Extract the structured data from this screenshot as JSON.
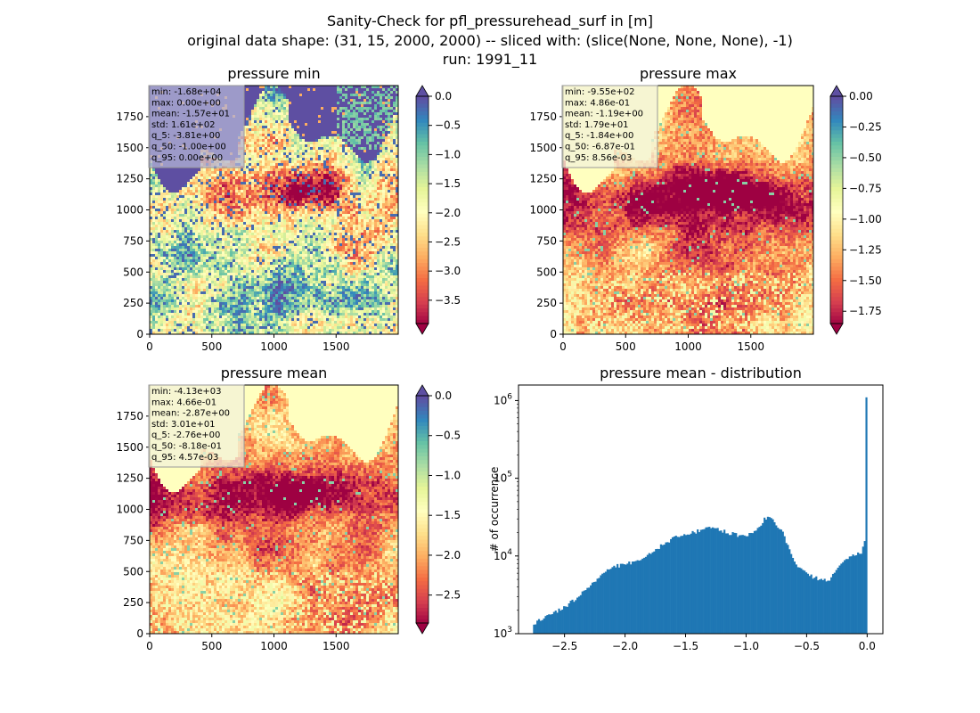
{
  "figure": {
    "title_lines": [
      "Sanity-Check for pfl_pressurehead_surf in [m]",
      "original data shape: (31, 15, 2000, 2000) -- sliced with: (slice(None, None, None), -1)",
      "run: 1991_11"
    ]
  },
  "chart_data": [
    {
      "type": "heatmap",
      "title": "pressure min",
      "colormap": "Spectral",
      "x_ticks": [
        "0",
        "500",
        "1000",
        "1500"
      ],
      "y_ticks": [
        "0",
        "250",
        "500",
        "750",
        "1000",
        "1250",
        "1500",
        "1750"
      ],
      "xlim": [
        0,
        2000
      ],
      "ylim": [
        0,
        2000
      ],
      "colorbar": {
        "range": [
          -3.9,
          0.0
        ],
        "ticks": [
          "0.0",
          "−0.5",
          "−1.0",
          "−1.5",
          "−2.0",
          "−2.5",
          "−3.0",
          "−3.5"
        ],
        "tick_values": [
          0.0,
          -0.5,
          -1.0,
          -1.5,
          -2.0,
          -2.5,
          -3.0,
          -3.5
        ],
        "extend": "both",
        "over_color": "#5e4fa2",
        "under_color": "#9e0142"
      },
      "stats": [
        "min: -1.68e+04",
        "max: 0.00e+00",
        "mean: -1.57e+01",
        "std: 1.61e+02",
        "q_5: -3.81e+00",
        "q_50: -1.00e+00",
        "q_95: 0.00e+00"
      ],
      "stats_box_color": "#b3b3d6"
    },
    {
      "type": "heatmap",
      "title": "pressure max",
      "colormap": "Spectral",
      "x_ticks": [
        "0",
        "500",
        "1000",
        "1500"
      ],
      "y_ticks": [
        "0",
        "250",
        "500",
        "750",
        "1000",
        "1250",
        "1500",
        "1750"
      ],
      "xlim": [
        0,
        2000
      ],
      "ylim": [
        0,
        2000
      ],
      "colorbar": {
        "range": [
          -1.85,
          0.0
        ],
        "ticks": [
          "0.00",
          "−0.25",
          "−0.50",
          "−0.75",
          "−1.00",
          "−1.25",
          "−1.50",
          "−1.75"
        ],
        "tick_values": [
          0.0,
          -0.25,
          -0.5,
          -0.75,
          -1.0,
          -1.25,
          -1.5,
          -1.75
        ],
        "extend": "both",
        "over_color": "#5e4fa2",
        "under_color": "#9e0142"
      },
      "stats": [
        "min: -9.55e+02",
        "max: 4.86e-01",
        "mean: -1.19e+00",
        "std: 1.79e+01",
        "q_5: -1.84e+00",
        "q_50: -6.87e-01",
        "q_95: 8.56e-03"
      ],
      "stats_box_color": "#f3f1d8"
    },
    {
      "type": "heatmap",
      "title": "pressure mean",
      "colormap": "Spectral",
      "x_ticks": [
        "0",
        "500",
        "1000",
        "1500"
      ],
      "y_ticks": [
        "0",
        "250",
        "500",
        "750",
        "1000",
        "1250",
        "1500",
        "1750"
      ],
      "xlim": [
        0,
        2000
      ],
      "ylim": [
        0,
        2000
      ],
      "colorbar": {
        "range": [
          -2.85,
          0.0
        ],
        "ticks": [
          "0.0",
          "−0.5",
          "−1.0",
          "−1.5",
          "−2.0",
          "−2.5"
        ],
        "tick_values": [
          0.0,
          -0.5,
          -1.0,
          -1.5,
          -2.0,
          -2.5
        ],
        "extend": "both",
        "over_color": "#5e4fa2",
        "under_color": "#9e0142"
      },
      "stats": [
        "min: -4.13e+03",
        "max: 4.66e-01",
        "mean: -2.87e+00",
        "std: 3.01e+01",
        "q_5: -2.76e+00",
        "q_50: -8.18e-01",
        "q_95: 4.57e-03"
      ],
      "stats_box_color": "#f3f1d8"
    },
    {
      "type": "bar",
      "title": "pressure mean - distribution",
      "xlabel": "",
      "ylabel": "# of occurrence",
      "color": "#1f77b4",
      "xlim": [
        -2.88,
        0.13
      ],
      "ylim_log10": [
        3.0,
        6.2
      ],
      "y_scale": "log",
      "x_ticks": [
        -2.5,
        -2.0,
        -1.5,
        -1.0,
        -0.5,
        0.0
      ],
      "x_tick_labels": [
        "−2.5",
        "−2.0",
        "−1.5",
        "−1.0",
        "−0.5",
        "0.0"
      ],
      "y_ticks_log10": [
        3,
        4,
        5,
        6
      ],
      "histogram_range": [
        -2.76,
        0.0
      ],
      "histogram_profile": [
        [
          -2.76,
          1300
        ],
        [
          -2.7,
          1500
        ],
        [
          -2.6,
          1800
        ],
        [
          -2.5,
          2200
        ],
        [
          -2.4,
          2900
        ],
        [
          -2.3,
          4000
        ],
        [
          -2.2,
          5600
        ],
        [
          -2.1,
          7200
        ],
        [
          -2.0,
          7900
        ],
        [
          -1.9,
          8300
        ],
        [
          -1.8,
          10500
        ],
        [
          -1.7,
          13500
        ],
        [
          -1.6,
          17000
        ],
        [
          -1.5,
          18500
        ],
        [
          -1.4,
          21000
        ],
        [
          -1.3,
          24500
        ],
        [
          -1.2,
          21000
        ],
        [
          -1.1,
          19000
        ],
        [
          -1.0,
          18000
        ],
        [
          -0.9,
          23000
        ],
        [
          -0.85,
          30000
        ],
        [
          -0.8,
          33000
        ],
        [
          -0.75,
          24000
        ],
        [
          -0.7,
          20000
        ],
        [
          -0.65,
          13000
        ],
        [
          -0.6,
          8000
        ],
        [
          -0.5,
          5800
        ],
        [
          -0.4,
          5000
        ],
        [
          -0.35,
          4800
        ],
        [
          -0.3,
          5200
        ],
        [
          -0.25,
          6500
        ],
        [
          -0.2,
          8500
        ],
        [
          -0.15,
          9500
        ],
        [
          -0.1,
          10500
        ],
        [
          -0.04,
          11500
        ],
        [
          -0.02,
          16000
        ],
        [
          -0.004,
          1100000
        ],
        [
          0.0,
          1100000
        ]
      ]
    }
  ]
}
